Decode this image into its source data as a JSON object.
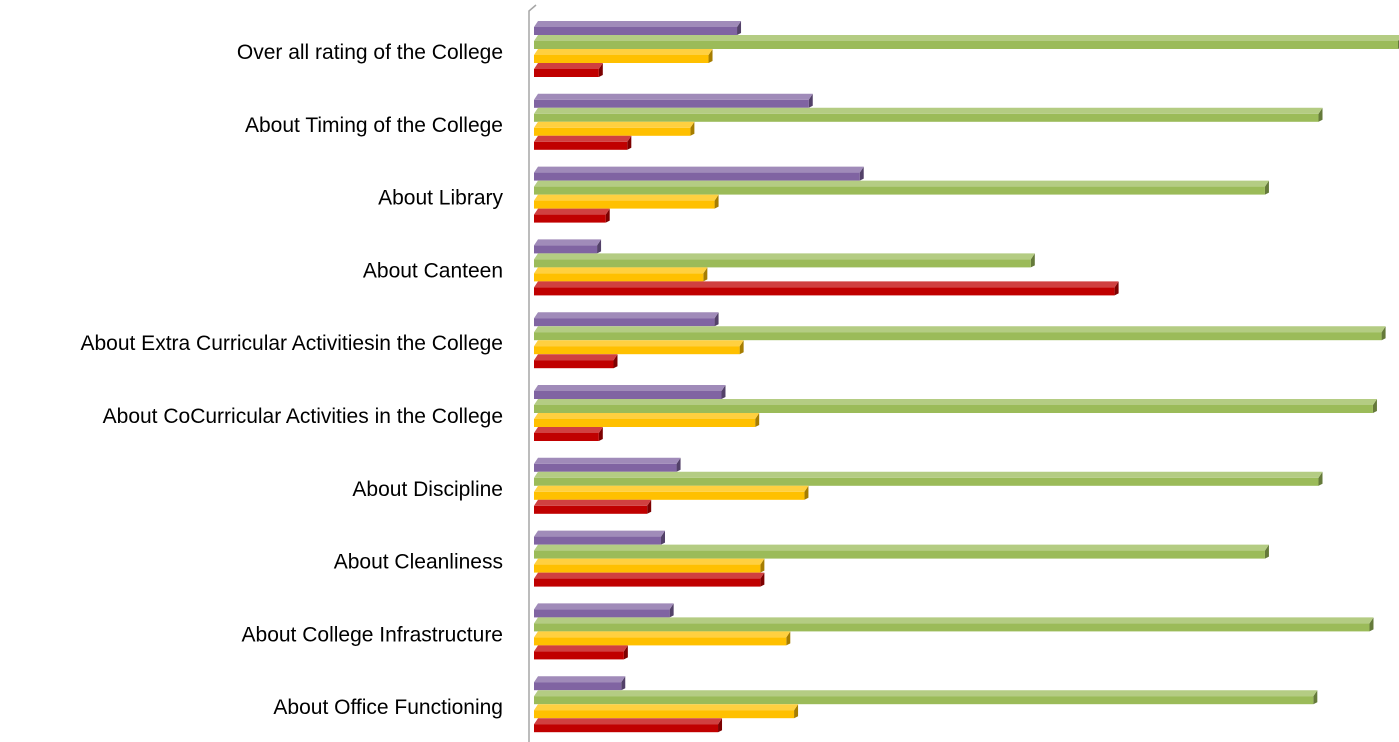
{
  "chart_data": {
    "type": "bar",
    "orientation": "horizontal",
    "style": "3d",
    "title": "",
    "xlabel": "",
    "ylabel": "",
    "grid": false,
    "legend": "none",
    "xlim": [
      0,
      1
    ],
    "categories": [
      "Over all rating of the College",
      "About Timing of the College",
      "About Library",
      "About Canteen",
      "About Extra Curricular Activitiesin the College",
      "About CoCurricular Activities in the College",
      "About  Discipline",
      "About Cleanliness",
      "About College Infrastructure",
      "About Office Functioning"
    ],
    "series": [
      {
        "color": "#8064a2",
        "values": [
          0.235,
          0.318,
          0.377,
          0.073,
          0.209,
          0.217,
          0.165,
          0.147,
          0.157,
          0.101
        ]
      },
      {
        "color": "#9bbb59",
        "values": [
          1.0,
          0.908,
          0.846,
          0.575,
          0.981,
          0.971,
          0.908,
          0.846,
          0.967,
          0.902
        ]
      },
      {
        "color": "#ffc000",
        "values": [
          0.202,
          0.181,
          0.209,
          0.196,
          0.238,
          0.256,
          0.313,
          0.262,
          0.292,
          0.301
        ]
      },
      {
        "color": "#c00000",
        "values": [
          0.075,
          0.108,
          0.083,
          0.672,
          0.092,
          0.075,
          0.131,
          0.262,
          0.104,
          0.213
        ]
      }
    ]
  }
}
